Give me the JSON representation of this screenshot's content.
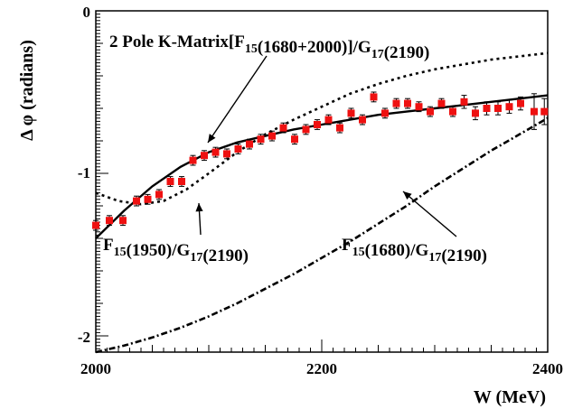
{
  "chart_data": {
    "type": "scatter",
    "xlabel": "W (MeV)",
    "ylabel": "Δ φ (radians)",
    "xlim": [
      2000,
      2400
    ],
    "ylim": [
      -2.1,
      0
    ],
    "x_ticks": [
      "2000",
      "2200",
      "2400"
    ],
    "y_ticks": [
      "0",
      "-1",
      "-2"
    ],
    "grid": false,
    "annotations": [
      {
        "id": "kmatrix",
        "parts": [
          [
            "2 Pole K-Matrix[F",
            ""
          ],
          [
            "15",
            "sub"
          ],
          [
            "(1680+2000)]/G",
            ""
          ],
          [
            "17",
            "sub"
          ],
          [
            "(2190)",
            ""
          ]
        ]
      },
      {
        "id": "f1950",
        "parts": [
          [
            "F",
            ""
          ],
          [
            "15",
            "sub"
          ],
          [
            "(1950)/G",
            ""
          ],
          [
            "17",
            "sub"
          ],
          [
            "(2190)",
            ""
          ]
        ]
      },
      {
        "id": "f1680",
        "parts": [
          [
            "F",
            ""
          ],
          [
            "15",
            "sub"
          ],
          [
            "(1680)/G",
            ""
          ],
          [
            "17",
            "sub"
          ],
          [
            "(2190)",
            ""
          ]
        ]
      }
    ],
    "colors": {
      "points": "#ee1111",
      "lines": "#000000"
    },
    "points": {
      "x": [
        2000,
        2012,
        2024,
        2036,
        2046,
        2056,
        2066,
        2076,
        2086,
        2096,
        2106,
        2116,
        2126,
        2136,
        2146,
        2156,
        2166,
        2176,
        2186,
        2196,
        2206,
        2216,
        2226,
        2236,
        2246,
        2256,
        2266,
        2276,
        2286,
        2296,
        2306,
        2316,
        2326,
        2336,
        2346,
        2356,
        2366,
        2376,
        2388,
        2397
      ],
      "y": [
        -1.32,
        -1.29,
        -1.29,
        -1.17,
        -1.16,
        -1.13,
        -1.05,
        -1.05,
        -0.92,
        -0.89,
        -0.87,
        -0.88,
        -0.85,
        -0.82,
        -0.79,
        -0.77,
        -0.72,
        -0.79,
        -0.73,
        -0.7,
        -0.67,
        -0.72,
        -0.63,
        -0.67,
        -0.53,
        -0.63,
        -0.57,
        -0.57,
        -0.59,
        -0.62,
        -0.57,
        -0.62,
        -0.56,
        -0.63,
        -0.6,
        -0.6,
        -0.59,
        -0.57,
        -0.62,
        -0.62
      ],
      "err": [
        0.03,
        0.03,
        0.03,
        0.03,
        0.03,
        0.03,
        0.03,
        0.03,
        0.03,
        0.03,
        0.03,
        0.03,
        0.03,
        0.03,
        0.03,
        0.03,
        0.03,
        0.03,
        0.03,
        0.03,
        0.03,
        0.03,
        0.03,
        0.03,
        0.03,
        0.03,
        0.03,
        0.03,
        0.03,
        0.03,
        0.03,
        0.03,
        0.04,
        0.04,
        0.04,
        0.04,
        0.04,
        0.04,
        0.11,
        0.08
      ]
    },
    "series": [
      {
        "style": "solid",
        "x": [
          2000,
          2025,
          2050,
          2075,
          2100,
          2125,
          2150,
          2175,
          2200,
          2225,
          2250,
          2275,
          2300,
          2325,
          2350,
          2375,
          2400
        ],
        "y": [
          -1.4,
          -1.23,
          -1.08,
          -0.96,
          -0.87,
          -0.81,
          -0.77,
          -0.73,
          -0.7,
          -0.67,
          -0.64,
          -0.62,
          -0.6,
          -0.58,
          -0.56,
          -0.54,
          -0.52
        ]
      },
      {
        "style": "dotted",
        "x": [
          2000,
          2020,
          2040,
          2060,
          2080,
          2100,
          2125,
          2150,
          2175,
          2200,
          2225,
          2250,
          2275,
          2300,
          2325,
          2350,
          2375,
          2400
        ],
        "y": [
          -1.12,
          -1.17,
          -1.19,
          -1.17,
          -1.1,
          -1.0,
          -0.87,
          -0.76,
          -0.67,
          -0.59,
          -0.51,
          -0.45,
          -0.4,
          -0.36,
          -0.33,
          -0.3,
          -0.28,
          -0.26
        ]
      },
      {
        "style": "dash-dot",
        "x": [
          2000,
          2025,
          2050,
          2075,
          2100,
          2125,
          2150,
          2175,
          2200,
          2225,
          2250,
          2275,
          2300,
          2325,
          2350,
          2375,
          2400
        ],
        "y": [
          -2.1,
          -2.06,
          -2.01,
          -1.95,
          -1.88,
          -1.8,
          -1.71,
          -1.62,
          -1.52,
          -1.42,
          -1.31,
          -1.2,
          -1.08,
          -0.97,
          -0.86,
          -0.76,
          -0.66
        ]
      }
    ]
  }
}
